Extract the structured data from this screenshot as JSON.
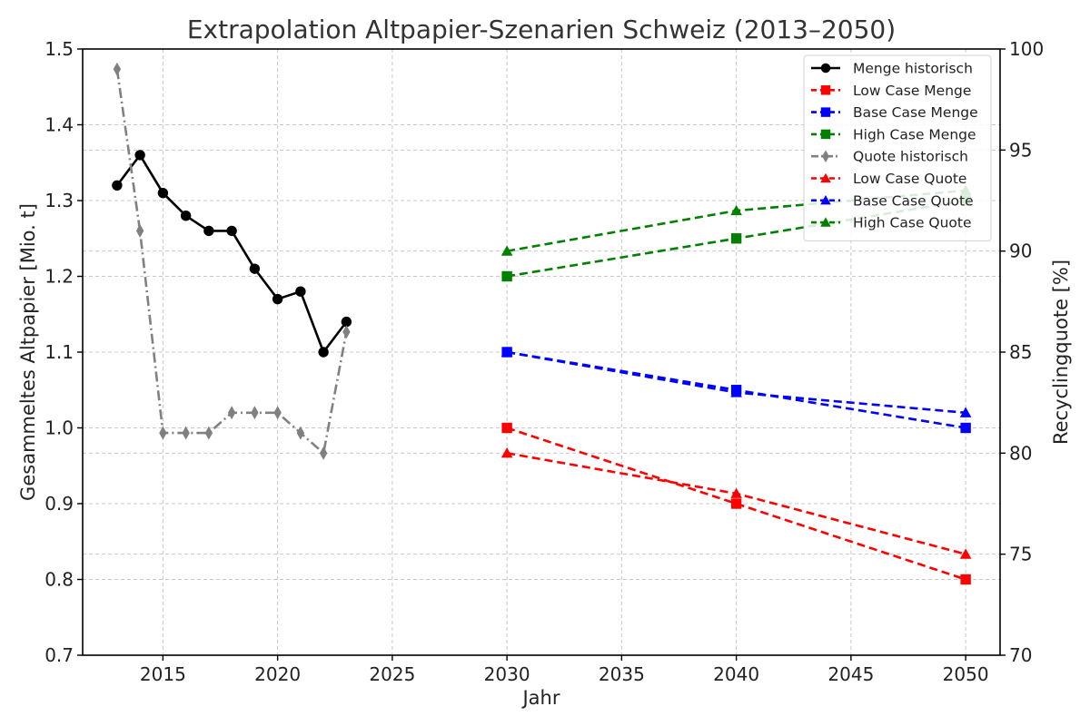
{
  "chart_data": {
    "type": "line",
    "title": "Extrapolation Altpapier-Szenarien Schweiz (2013–2050)",
    "xlabel": "Jahr",
    "ylabel_left": "Gesammeltes Altpapier [Mio. t]",
    "ylabel_right": "Recyclingquote [%]",
    "xlim": [
      2011.5,
      2051.5
    ],
    "ylim_left": [
      0.7,
      1.5
    ],
    "ylim_right": [
      70,
      100
    ],
    "xticks": [
      2015,
      2020,
      2025,
      2030,
      2035,
      2040,
      2045,
      2050
    ],
    "yticks_left": [
      0.7,
      0.8,
      0.9,
      1.0,
      1.1,
      1.2,
      1.3,
      1.4,
      1.5
    ],
    "yticks_left_labels": [
      "0.7",
      "0.8",
      "0.9",
      "1.0",
      "1.1",
      "1.2",
      "1.3",
      "1.4",
      "1.5"
    ],
    "yticks_right": [
      70,
      75,
      80,
      85,
      90,
      95,
      100
    ],
    "grid": true,
    "legend_position": "top-right",
    "series": [
      {
        "name": "Menge historisch",
        "axis": "left",
        "color": "#000000",
        "linestyle": "solid",
        "marker": "circle",
        "x": [
          2013,
          2014,
          2015,
          2016,
          2017,
          2018,
          2019,
          2020,
          2021,
          2022,
          2023
        ],
        "y": [
          1.32,
          1.36,
          1.31,
          1.28,
          1.26,
          1.26,
          1.21,
          1.17,
          1.18,
          1.1,
          1.14
        ]
      },
      {
        "name": "Low Case Menge",
        "axis": "left",
        "color": "#ff0000",
        "linestyle": "dashed",
        "marker": "square",
        "x": [
          2030,
          2040,
          2050
        ],
        "y": [
          1.0,
          0.9,
          0.8
        ]
      },
      {
        "name": "Base Case Menge",
        "axis": "left",
        "color": "#0000ff",
        "linestyle": "dashed",
        "marker": "square",
        "x": [
          2030,
          2040,
          2050
        ],
        "y": [
          1.1,
          1.05,
          1.0
        ]
      },
      {
        "name": "High Case Menge",
        "axis": "left",
        "color": "#008000",
        "linestyle": "dashed",
        "marker": "square",
        "x": [
          2030,
          2040,
          2050
        ],
        "y": [
          1.2,
          1.25,
          1.3
        ]
      },
      {
        "name": "Quote historisch",
        "axis": "right",
        "color": "#808080",
        "linestyle": "dashdot",
        "marker": "diamond",
        "x": [
          2013,
          2014,
          2015,
          2016,
          2017,
          2018,
          2019,
          2020,
          2021,
          2022,
          2023
        ],
        "y": [
          99,
          91,
          81,
          81,
          81,
          82,
          82,
          82,
          81,
          80,
          86
        ]
      },
      {
        "name": "Low Case Quote",
        "axis": "right",
        "color": "#ff0000",
        "linestyle": "dashed",
        "marker": "triangle",
        "x": [
          2030,
          2040,
          2050
        ],
        "y": [
          80,
          78,
          75
        ]
      },
      {
        "name": "Base Case Quote",
        "axis": "right",
        "color": "#0000ff",
        "linestyle": "dashed",
        "marker": "triangle",
        "x": [
          2030,
          2040,
          2050
        ],
        "y": [
          85,
          83,
          82
        ]
      },
      {
        "name": "High Case Quote",
        "axis": "right",
        "color": "#008000",
        "linestyle": "dashed",
        "marker": "triangle",
        "x": [
          2030,
          2040,
          2050
        ],
        "y": [
          90,
          92,
          93
        ]
      }
    ]
  }
}
